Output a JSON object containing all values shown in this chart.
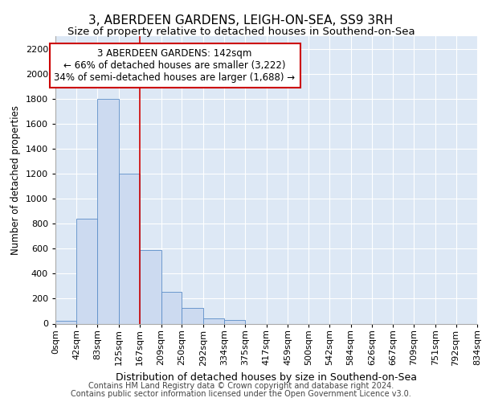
{
  "title": "3, ABERDEEN GARDENS, LEIGH-ON-SEA, SS9 3RH",
  "subtitle": "Size of property relative to detached houses in Southend-on-Sea",
  "xlabel": "Distribution of detached houses by size in Southend-on-Sea",
  "ylabel": "Number of detached properties",
  "footnote1": "Contains HM Land Registry data © Crown copyright and database right 2024.",
  "footnote2": "Contains public sector information licensed under the Open Government Licence v3.0.",
  "bar_labels": [
    "0sqm",
    "42sqm",
    "83sqm",
    "125sqm",
    "167sqm",
    "209sqm",
    "250sqm",
    "292sqm",
    "334sqm",
    "375sqm",
    "417sqm",
    "459sqm",
    "500sqm",
    "542sqm",
    "584sqm",
    "626sqm",
    "667sqm",
    "709sqm",
    "751sqm",
    "792sqm",
    "834sqm"
  ],
  "bin_edges": [
    0,
    42,
    83,
    125,
    167,
    209,
    250,
    292,
    334,
    375,
    417,
    459,
    500,
    542,
    584,
    626,
    667,
    709,
    751,
    792,
    834
  ],
  "bar_heights": [
    25,
    840,
    1800,
    1200,
    590,
    255,
    125,
    45,
    30,
    0,
    0,
    0,
    0,
    0,
    0,
    0,
    0,
    0,
    0,
    0
  ],
  "vline_x": 167,
  "bar_color": "#ccdaf0",
  "bar_edgecolor": "#5b8dc8",
  "vline_color": "#cc0000",
  "annotation_line1": "3 ABERDEEN GARDENS: 142sqm",
  "annotation_line2": "← 66% of detached houses are smaller (3,222)",
  "annotation_line3": "34% of semi-detached houses are larger (1,688) →",
  "annotation_box_color": "#ffffff",
  "annotation_box_edgecolor": "#cc0000",
  "ylim": [
    0,
    2300
  ],
  "yticks": [
    0,
    200,
    400,
    600,
    800,
    1000,
    1200,
    1400,
    1600,
    1800,
    2000,
    2200
  ],
  "background_color": "#dde8f5",
  "title_fontsize": 11,
  "subtitle_fontsize": 9.5,
  "xlabel_fontsize": 9,
  "ylabel_fontsize": 8.5,
  "tick_fontsize": 8,
  "annotation_fontsize": 8.5,
  "footnote_fontsize": 7
}
